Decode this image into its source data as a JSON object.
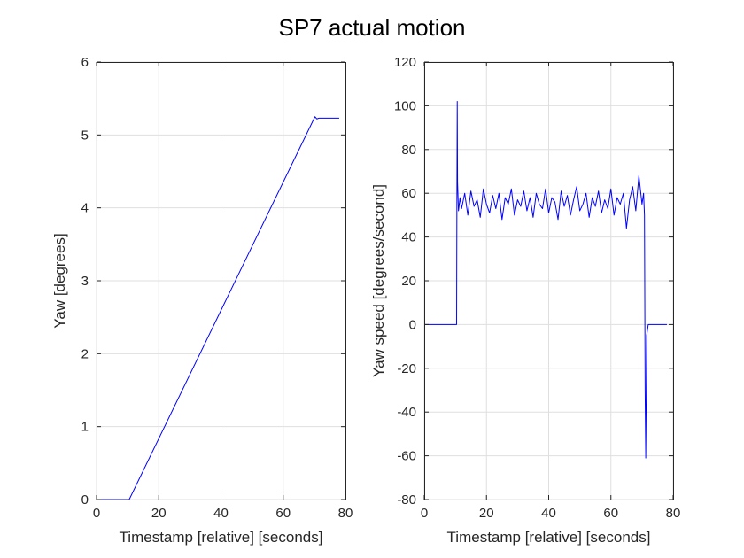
{
  "figure": {
    "title": "SP7 actual motion"
  },
  "chart_data": [
    {
      "type": "line",
      "title": "",
      "xlabel": "Timestamp [relative] [seconds]",
      "ylabel": "Yaw [degrees]",
      "xlim": [
        0,
        80
      ],
      "ylim": [
        0,
        6
      ],
      "xticks": [
        "0",
        "20",
        "40",
        "60",
        "80"
      ],
      "yticks": [
        "0",
        "1",
        "2",
        "3",
        "4",
        "5",
        "6"
      ],
      "grid": true,
      "series": [
        {
          "color": "#0000ff",
          "x": [
            0,
            10.5,
            70.2,
            70.8,
            71.5,
            78
          ],
          "y": [
            0,
            0,
            5.25,
            5.22,
            5.23,
            5.23
          ]
        }
      ]
    },
    {
      "type": "line",
      "title": "",
      "xlabel": "Timestamp [relative] [seconds]",
      "ylabel": "Yaw speed [degrees/second]",
      "xlim": [
        0,
        80
      ],
      "ylim": [
        -80,
        120
      ],
      "xticks": [
        "0",
        "20",
        "40",
        "60",
        "80"
      ],
      "yticks": [
        "-80",
        "-60",
        "-40",
        "-20",
        "0",
        "20",
        "40",
        "60",
        "80",
        "100",
        "120"
      ],
      "grid": true,
      "series": [
        {
          "color": "#0000ff",
          "x": [
            0,
            10.4,
            10.5,
            10.6,
            10.7,
            11,
            11.5,
            12,
            13,
            14,
            15,
            16,
            17,
            18,
            19,
            20,
            21,
            22,
            23,
            24,
            25,
            26,
            27,
            28,
            29,
            30,
            31,
            32,
            33,
            34,
            35,
            36,
            37,
            38,
            39,
            40,
            41,
            42,
            43,
            44,
            45,
            46,
            47,
            48,
            49,
            50,
            51,
            52,
            53,
            54,
            55,
            56,
            57,
            58,
            59,
            60,
            61,
            62,
            63,
            64,
            65,
            66,
            67,
            68,
            69,
            70,
            70.5,
            70.8,
            71.0,
            71.2,
            71.5,
            72,
            73,
            74,
            75,
            76,
            77,
            78
          ],
          "y": [
            0,
            0,
            60,
            102,
            65,
            52,
            58,
            53,
            60,
            50,
            61,
            54,
            57,
            49,
            62,
            55,
            51,
            59,
            53,
            60,
            48,
            58,
            55,
            62,
            50,
            57,
            54,
            61,
            52,
            58,
            49,
            60,
            55,
            53,
            62,
            51,
            58,
            56,
            48,
            61,
            54,
            59,
            50,
            57,
            63,
            52,
            55,
            60,
            49,
            58,
            54,
            61,
            51,
            57,
            53,
            62,
            50,
            58,
            55,
            60,
            44,
            57,
            63,
            52,
            68,
            55,
            60,
            50,
            -30,
            -61,
            -5,
            0,
            0,
            0,
            0,
            0,
            0,
            0
          ]
        }
      ]
    }
  ]
}
